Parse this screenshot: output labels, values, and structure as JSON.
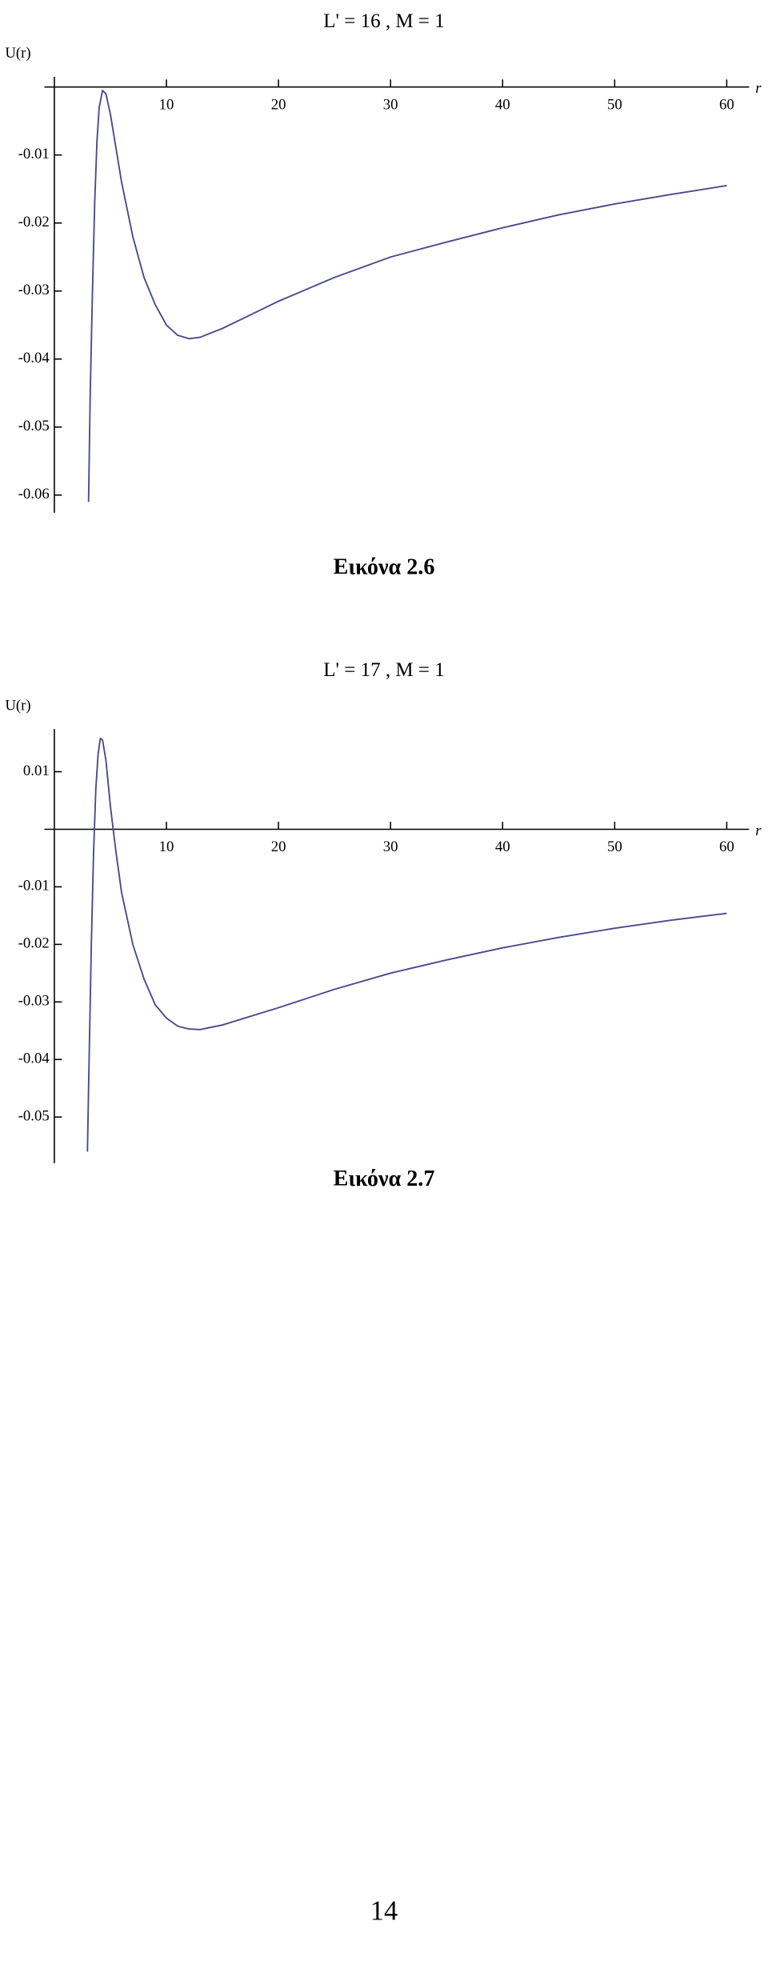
{
  "chart_data": [
    {
      "type": "line",
      "title": "L' = 16 ,  M = 1",
      "y_label": "U(r)",
      "x_label": "r",
      "xlim": [
        0,
        62
      ],
      "ylim": [
        -0.0626,
        0.0015
      ],
      "xticks": [
        10,
        20,
        30,
        40,
        50,
        60
      ],
      "yticks": [
        -0.01,
        -0.02,
        -0.03,
        -0.04,
        -0.05,
        -0.06
      ],
      "color": "#4a4a8c",
      "x": [
        3.05,
        3.2,
        3.4,
        3.6,
        3.8,
        4.0,
        4.3,
        4.6,
        5.0,
        5.5,
        6,
        7,
        8,
        9,
        10,
        11,
        12,
        13,
        15,
        20,
        25,
        30,
        35,
        40,
        45,
        50,
        55,
        60
      ],
      "values": [
        -0.061,
        -0.045,
        -0.03,
        -0.017,
        -0.008,
        -0.003,
        -0.0005,
        -0.001,
        -0.004,
        -0.009,
        -0.014,
        -0.022,
        -0.028,
        -0.032,
        -0.035,
        -0.0365,
        -0.037,
        -0.0368,
        -0.0355,
        -0.0315,
        -0.028,
        -0.025,
        -0.0228,
        -0.0207,
        -0.0188,
        -0.0172,
        -0.0158,
        -0.0145
      ]
    },
    {
      "type": "line",
      "title": "L' = 17 ,  M = 1",
      "y_label": "U(r)",
      "x_label": "r",
      "xlim": [
        0,
        62
      ],
      "ylim": [
        -0.058,
        0.0174
      ],
      "xticks": [
        10,
        20,
        30,
        40,
        50,
        60
      ],
      "yticks": [
        0.01,
        -0.01,
        -0.02,
        -0.03,
        -0.04,
        -0.05
      ],
      "color": "#4a4a8c",
      "x": [
        2.95,
        3.1,
        3.3,
        3.5,
        3.7,
        3.9,
        4.1,
        4.3,
        4.6,
        5.0,
        5.5,
        6,
        7,
        8,
        9,
        10,
        11,
        12,
        13,
        15,
        20,
        25,
        30,
        35,
        40,
        45,
        50,
        55,
        60
      ],
      "values": [
        -0.056,
        -0.04,
        -0.02,
        -0.004,
        0.007,
        0.013,
        0.0158,
        0.0155,
        0.012,
        0.004,
        -0.004,
        -0.011,
        -0.02,
        -0.026,
        -0.0305,
        -0.0328,
        -0.0342,
        -0.0347,
        -0.0348,
        -0.034,
        -0.031,
        -0.0278,
        -0.025,
        -0.0227,
        -0.0206,
        -0.0188,
        -0.0172,
        -0.0158,
        -0.0146
      ]
    }
  ],
  "captions": [
    "Εικόνα 2.6",
    "Εικόνα 2.7"
  ],
  "page_number": "14"
}
